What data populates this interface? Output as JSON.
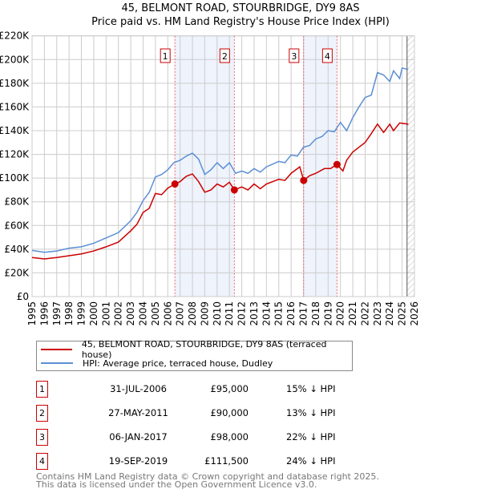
{
  "title": "45, BELMONT ROAD, STOURBRIDGE, DY9 8AS",
  "subtitle": "Price paid vs. HM Land Registry's House Price Index (HPI)",
  "chart_data": {
    "type": "line",
    "ylim": [
      0,
      220000
    ],
    "xlim": [
      1995,
      2026
    ],
    "yticks": [
      {
        "v": 0,
        "l": "£0"
      },
      {
        "v": 20000,
        "l": "£20K"
      },
      {
        "v": 40000,
        "l": "£40K"
      },
      {
        "v": 60000,
        "l": "£60K"
      },
      {
        "v": 80000,
        "l": "£80K"
      },
      {
        "v": 100000,
        "l": "£100K"
      },
      {
        "v": 120000,
        "l": "£120K"
      },
      {
        "v": 140000,
        "l": "£140K"
      },
      {
        "v": 160000,
        "l": "£160K"
      },
      {
        "v": 180000,
        "l": "£180K"
      },
      {
        "v": 200000,
        "l": "£200K"
      },
      {
        "v": 220000,
        "l": "£220K"
      }
    ],
    "xticks": [
      "1995",
      "1996",
      "1997",
      "1998",
      "1999",
      "2000",
      "2001",
      "2002",
      "2003",
      "2004",
      "2005",
      "2006",
      "2007",
      "2008",
      "2009",
      "2010",
      "2011",
      "2012",
      "2013",
      "2014",
      "2015",
      "2016",
      "2017",
      "2018",
      "2019",
      "2020",
      "2021",
      "2022",
      "2023",
      "2024",
      "2025",
      "2026"
    ],
    "forecast_from": 2025.4,
    "shaded": [
      [
        2006.58,
        2011.4
      ],
      [
        2017.02,
        2019.72
      ]
    ],
    "series": [
      {
        "name": "45, BELMONT ROAD, STOURBRIDGE, DY9 8AS (terraced house)",
        "color": "#cc0000",
        "x": [
          1995,
          1996,
          1997,
          1998,
          1999,
          2000,
          2001,
          2002,
          2003,
          2003.5,
          2004,
          2004.5,
          2005,
          2005.5,
          2006,
          2006.58,
          2007,
          2007.5,
          2008,
          2008.5,
          2009,
          2009.5,
          2010,
          2010.5,
          2011,
          2011.4,
          2012,
          2012.5,
          2013,
          2013.5,
          2014,
          2015,
          2015.5,
          2016,
          2016.7,
          2017.02,
          2017.5,
          2018,
          2018.7,
          2019.2,
          2019.72,
          2020.2,
          2020.5,
          2021,
          2021.5,
          2022,
          2022.5,
          2023,
          2023.5,
          2024,
          2024.3,
          2024.8,
          2025.5
        ],
        "y": [
          33000,
          31800,
          33000,
          34500,
          36000,
          38500,
          42000,
          46000,
          55500,
          61000,
          71000,
          74500,
          87000,
          86000,
          91500,
          95000,
          97000,
          101500,
          103500,
          97000,
          88000,
          90000,
          95000,
          92500,
          96500,
          90000,
          92500,
          90000,
          95000,
          91000,
          95000,
          99000,
          98000,
          104000,
          109500,
          98000,
          102000,
          104000,
          108000,
          108000,
          111500,
          106000,
          115000,
          122000,
          126000,
          130000,
          137500,
          145500,
          138500,
          145500,
          140000,
          146500,
          145500
        ]
      },
      {
        "name": "HPI: Average price, terraced house, Dudley",
        "color": "#5b8fd4",
        "x": [
          1995,
          1996,
          1997,
          1998,
          1999,
          2000,
          2001,
          2002,
          2003,
          2003.5,
          2004,
          2004.5,
          2005,
          2005.5,
          2006,
          2006.5,
          2007,
          2007.5,
          2008,
          2008.5,
          2009,
          2009.5,
          2010,
          2010.5,
          2011,
          2011.5,
          2012,
          2012.5,
          2013,
          2013.5,
          2014,
          2015,
          2015.5,
          2016,
          2016.5,
          2017,
          2017.5,
          2018,
          2018.5,
          2019,
          2019.5,
          2020,
          2020.5,
          2021,
          2021.5,
          2022,
          2022.5,
          2023,
          2023.5,
          2024,
          2024.3,
          2024.8,
          2025,
          2025.5
        ],
        "y": [
          39000,
          37400,
          38500,
          40800,
          42000,
          45000,
          49500,
          54000,
          64000,
          71000,
          81000,
          88000,
          101000,
          103000,
          107000,
          113000,
          115000,
          118500,
          121000,
          116000,
          103000,
          107000,
          113000,
          108000,
          113000,
          104000,
          106000,
          104000,
          108000,
          105000,
          109500,
          114000,
          113000,
          119500,
          118500,
          126000,
          127500,
          133000,
          135000,
          140000,
          139000,
          147000,
          140000,
          151000,
          160000,
          168000,
          170000,
          189000,
          187000,
          181500,
          190500,
          184000,
          192800,
          191600
        ]
      }
    ],
    "sales": [
      {
        "n": "1",
        "x": 2006.58,
        "date": "31-JUL-2006",
        "price": "£95,000",
        "v": 95000,
        "hpi": "15% ↓ HPI"
      },
      {
        "n": "2",
        "x": 2011.4,
        "date": "27-MAY-2011",
        "price": "£90,000",
        "v": 90000,
        "hpi": "13% ↓ HPI"
      },
      {
        "n": "3",
        "x": 2017.02,
        "date": "06-JAN-2017",
        "price": "£98,000",
        "v": 98000,
        "hpi": "22% ↓ HPI"
      },
      {
        "n": "4",
        "x": 2019.72,
        "date": "19-SEP-2019",
        "price": "£111,500",
        "v": 111500,
        "hpi": "24% ↓ HPI"
      }
    ]
  },
  "legend": {
    "red": "45, BELMONT ROAD, STOURBRIDGE, DY9 8AS (terraced house)",
    "blue": "HPI: Average price, terraced house, Dudley"
  },
  "footer": {
    "line1": "Contains HM Land Registry data © Crown copyright and database right 2025.",
    "line2": "This data is licensed under the Open Government Licence v3.0."
  }
}
